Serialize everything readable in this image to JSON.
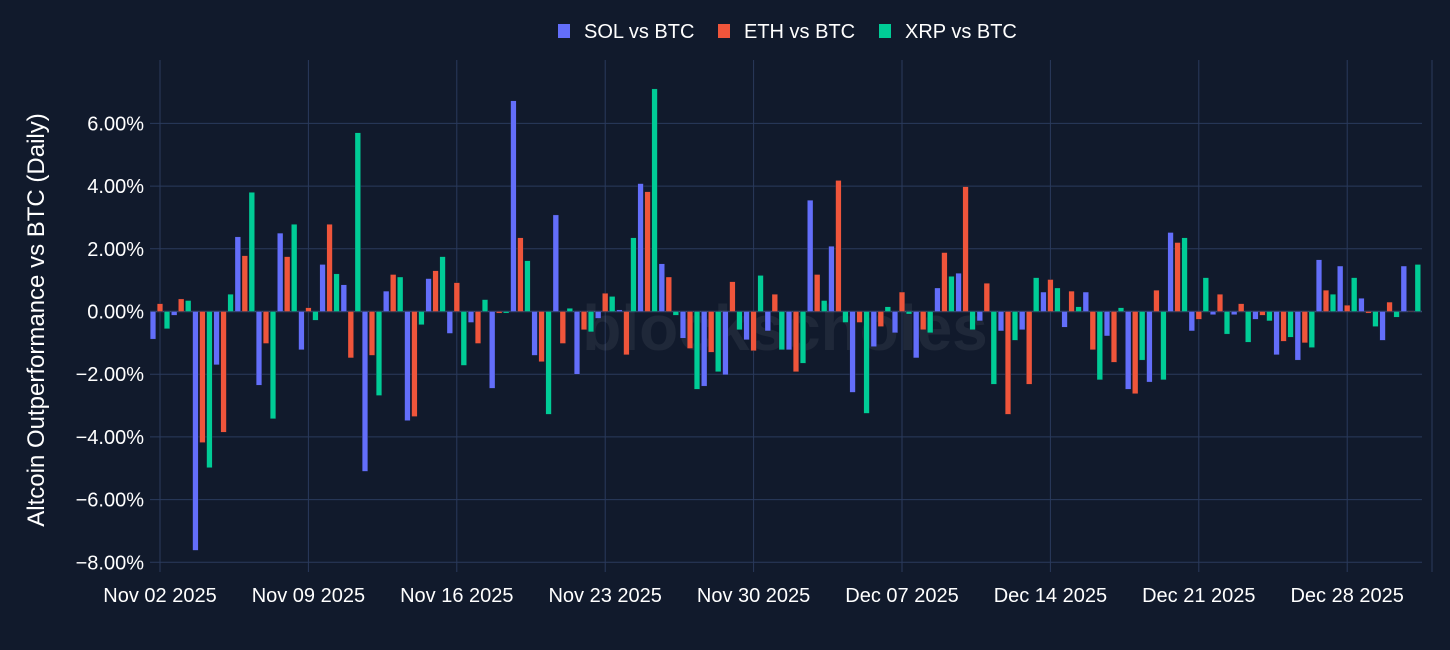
{
  "chart_data": {
    "type": "bar",
    "title": "",
    "xlabel": "",
    "ylabel": "Altcoin Outperformance vs BTC (Daily)",
    "ylim": [
      -8.0,
      7.8
    ],
    "ytick_values": [
      -8,
      -6,
      -4,
      -2,
      0,
      2,
      4,
      6
    ],
    "ytick_labels": [
      "−8.00%",
      "−6.00%",
      "−4.00%",
      "−2.00%",
      "0.00%",
      "2.00%",
      "4.00%",
      "6.00%"
    ],
    "xtick_labels": [
      "Nov 02 2025",
      "Nov 09 2025",
      "Nov 16 2025",
      "Nov 23 2025",
      "Nov 30 2025",
      "Dec 07 2025",
      "Dec 14 2025",
      "Dec 21 2025",
      "Dec 28 2025"
    ],
    "xtick_day_index": [
      0,
      7,
      14,
      21,
      28,
      35,
      42,
      49,
      56
    ],
    "grid": true,
    "legend_position": "top-center",
    "watermark": "blockscholes",
    "categories": [
      "Nov 02",
      "Nov 03",
      "Nov 04",
      "Nov 05",
      "Nov 06",
      "Nov 07",
      "Nov 08",
      "Nov 09",
      "Nov 10",
      "Nov 11",
      "Nov 12",
      "Nov 13",
      "Nov 14",
      "Nov 15",
      "Nov 16",
      "Nov 17",
      "Nov 18",
      "Nov 19",
      "Nov 20",
      "Nov 21",
      "Nov 22",
      "Nov 23",
      "Nov 24",
      "Nov 25",
      "Nov 26",
      "Nov 27",
      "Nov 28",
      "Nov 29",
      "Nov 30",
      "Dec 01",
      "Dec 02",
      "Dec 03",
      "Dec 04",
      "Dec 05",
      "Dec 06",
      "Dec 07",
      "Dec 08",
      "Dec 09",
      "Dec 10",
      "Dec 11",
      "Dec 12",
      "Dec 13",
      "Dec 14",
      "Dec 15",
      "Dec 16",
      "Dec 17",
      "Dec 18",
      "Dec 19",
      "Dec 20",
      "Dec 21",
      "Dec 22",
      "Dec 23",
      "Dec 24",
      "Dec 25",
      "Dec 26",
      "Dec 27",
      "Dec 28",
      "Dec 29",
      "Dec 30",
      "Dec 31"
    ],
    "series": [
      {
        "name": "SOL vs BTC",
        "color": "#636efa",
        "values": [
          -0.88,
          -0.12,
          -7.62,
          -1.7,
          2.38,
          -2.35,
          2.5,
          -1.22,
          1.5,
          0.85,
          -5.1,
          0.65,
          -3.48,
          1.05,
          -0.7,
          -0.35,
          -2.45,
          6.72,
          -1.4,
          3.08,
          -2.0,
          -0.22,
          0.05,
          4.08,
          1.52,
          -0.85,
          -2.38,
          -2.02,
          -0.9,
          -0.62,
          -1.22,
          3.55,
          2.08,
          -2.58,
          -1.12,
          -0.68,
          -1.48,
          0.75,
          1.22,
          -0.3,
          -0.62,
          -0.58,
          0.62,
          -0.5,
          0.62,
          -0.78,
          -2.48,
          -2.25,
          2.52,
          -0.62,
          -0.1,
          -0.1,
          -0.25,
          -1.38,
          -1.55,
          1.65,
          1.45,
          0.42,
          -0.92,
          1.45
        ]
      },
      {
        "name": "ETH vs BTC",
        "color": "#ef553b",
        "values": [
          0.25,
          0.4,
          -4.18,
          -3.85,
          1.78,
          -1.02,
          1.75,
          0.12,
          2.78,
          -1.48,
          -1.4,
          1.18,
          -3.35,
          1.3,
          0.92,
          -1.02,
          -0.05,
          2.35,
          -1.6,
          -1.02,
          -0.58,
          0.58,
          -1.38,
          3.82,
          1.1,
          -1.18,
          -1.3,
          0.95,
          -1.25,
          0.55,
          -1.92,
          1.18,
          4.18,
          -0.35,
          -0.48,
          0.62,
          -0.58,
          1.88,
          3.98,
          0.9,
          -3.28,
          -2.32,
          1.02,
          0.65,
          -1.22,
          -1.62,
          -2.62,
          0.68,
          2.2,
          -0.25,
          0.55,
          0.25,
          -0.12,
          -0.95,
          -1.0,
          0.68,
          0.2,
          -0.05,
          0.3,
          0.0
        ]
      },
      {
        "name": "XRP vs BTC",
        "color": "#00cc96",
        "values": [
          -0.55,
          0.35,
          -4.98,
          0.55,
          3.8,
          -3.42,
          2.78,
          -0.28,
          1.2,
          5.7,
          -2.68,
          1.1,
          -0.42,
          1.75,
          -1.72,
          0.38,
          -0.05,
          1.62,
          -3.28,
          0.1,
          -0.65,
          0.48,
          2.35,
          7.1,
          -0.12,
          -2.48,
          -1.92,
          -0.58,
          1.15,
          -1.22,
          -1.65,
          0.35,
          -0.35,
          -3.25,
          0.15,
          -0.08,
          -0.68,
          1.12,
          -0.58,
          -2.32,
          -0.92,
          1.08,
          0.75,
          0.15,
          -2.18,
          0.12,
          -1.55,
          -2.18,
          2.35,
          1.08,
          -0.72,
          -0.98,
          -0.3,
          -0.82,
          -1.15,
          0.55,
          1.08,
          -0.48,
          -0.18,
          1.5
        ]
      }
    ]
  }
}
